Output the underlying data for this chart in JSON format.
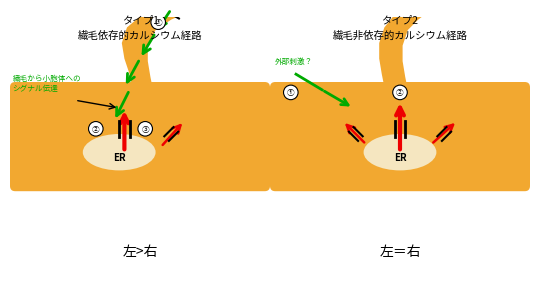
{
  "title1_line1": "タイプ1",
  "title1_line2": "繊毛依存的カルシウム経路",
  "title2_line1": "タイプ2",
  "title2_line2": "繊毛非依存的カルシウム経路",
  "label_er": "ER",
  "label_left_gt_right": "左>右",
  "label_left_eq_right": "左＝右",
  "label_signal": "繊毛から小胞体への\nシグナル伝達",
  "label_external": "外部刺激？",
  "bg_color": "#ffffff",
  "cilia_color": "#F2A830",
  "er_color": "#F5E6C0",
  "green_color": "#00AA00",
  "red_color": "#EE0000",
  "num1": "①",
  "num2": "②",
  "num3": "③"
}
